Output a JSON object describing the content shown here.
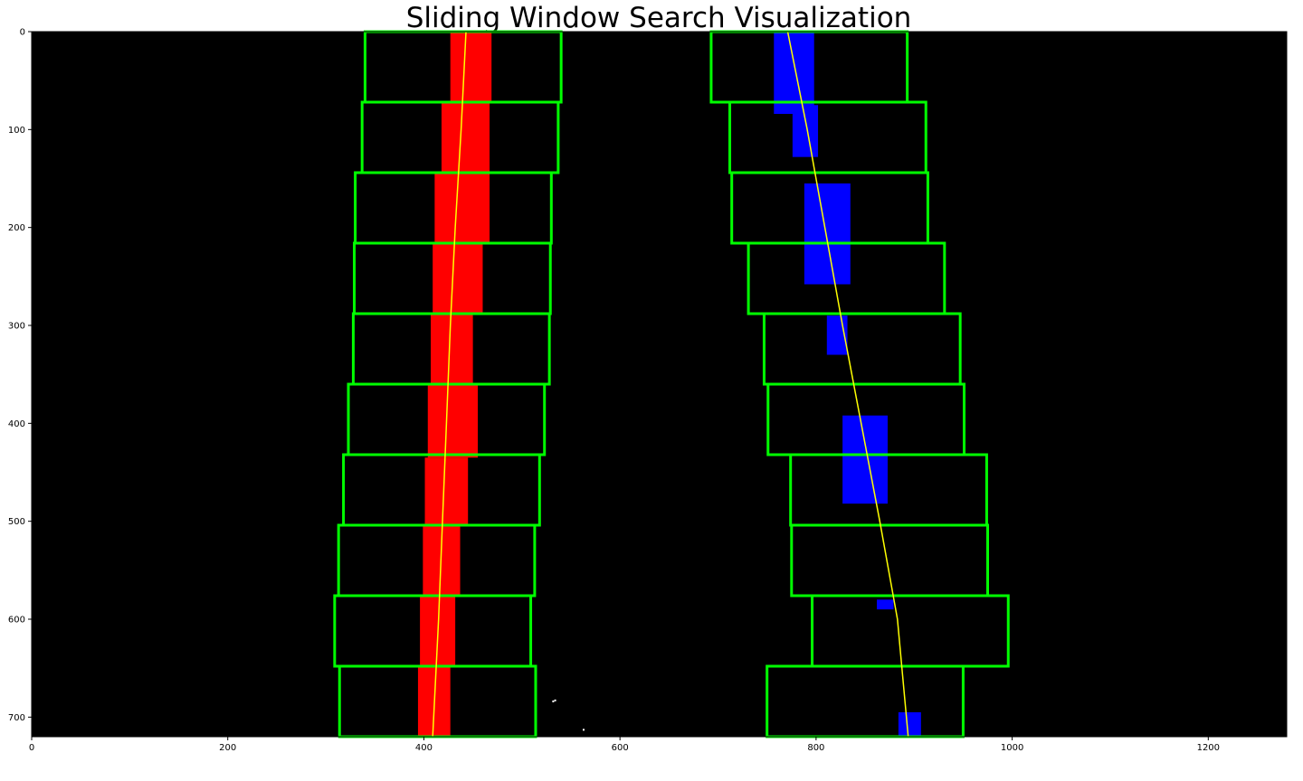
{
  "chart_data": {
    "type": "scatter",
    "title": "Sliding Window Search Visualization",
    "xlabel": "",
    "ylabel": "",
    "xlim": [
      0,
      1280
    ],
    "ylim": [
      720,
      0
    ],
    "xticks": [
      0,
      200,
      400,
      600,
      800,
      1000,
      1200
    ],
    "yticks": [
      0,
      100,
      200,
      300,
      400,
      500,
      600,
      700
    ],
    "grid": false,
    "background": "#000000",
    "colors": {
      "left_lane": "#ff0000",
      "right_lane": "#0000ff",
      "window": "#00ff00",
      "fit_line": "#ffff00",
      "noise": "#ffffff"
    },
    "windows": {
      "left": [
        {
          "x0": 340,
          "x1": 540,
          "y0": 0,
          "y1": 72
        },
        {
          "x0": 337,
          "x1": 537,
          "y0": 72,
          "y1": 144
        },
        {
          "x0": 330,
          "x1": 530,
          "y0": 144,
          "y1": 216
        },
        {
          "x0": 329,
          "x1": 529,
          "y0": 216,
          "y1": 288
        },
        {
          "x0": 328,
          "x1": 528,
          "y0": 288,
          "y1": 360
        },
        {
          "x0": 323,
          "x1": 523,
          "y0": 360,
          "y1": 432
        },
        {
          "x0": 318,
          "x1": 518,
          "y0": 432,
          "y1": 504
        },
        {
          "x0": 313,
          "x1": 513,
          "y0": 504,
          "y1": 576
        },
        {
          "x0": 309,
          "x1": 509,
          "y0": 576,
          "y1": 648
        },
        {
          "x0": 314,
          "x1": 514,
          "y0": 648,
          "y1": 720
        }
      ],
      "right": [
        {
          "x0": 693,
          "x1": 893,
          "y0": 0,
          "y1": 72
        },
        {
          "x0": 712,
          "x1": 912,
          "y0": 72,
          "y1": 144
        },
        {
          "x0": 714,
          "x1": 914,
          "y0": 144,
          "y1": 216
        },
        {
          "x0": 731,
          "x1": 931,
          "y0": 216,
          "y1": 288
        },
        {
          "x0": 747,
          "x1": 947,
          "y0": 288,
          "y1": 360
        },
        {
          "x0": 751,
          "x1": 951,
          "y0": 360,
          "y1": 432
        },
        {
          "x0": 774,
          "x1": 974,
          "y0": 432,
          "y1": 504
        },
        {
          "x0": 775,
          "x1": 975,
          "y0": 504,
          "y1": 576
        },
        {
          "x0": 796,
          "x1": 996,
          "y0": 576,
          "y1": 648
        },
        {
          "x0": 750,
          "x1": 950,
          "y0": 648,
          "y1": 720
        }
      ]
    },
    "fit_lines": {
      "left": [
        {
          "x": 443,
          "y": 0
        },
        {
          "x": 438,
          "y": 100
        },
        {
          "x": 432,
          "y": 200
        },
        {
          "x": 427,
          "y": 300
        },
        {
          "x": 423,
          "y": 400
        },
        {
          "x": 419,
          "y": 500
        },
        {
          "x": 415,
          "y": 600
        },
        {
          "x": 409,
          "y": 720
        }
      ],
      "right": [
        {
          "x": 771,
          "y": 0
        },
        {
          "x": 791,
          "y": 100
        },
        {
          "x": 809,
          "y": 200
        },
        {
          "x": 827,
          "y": 300
        },
        {
          "x": 846,
          "y": 400
        },
        {
          "x": 865,
          "y": 500
        },
        {
          "x": 883,
          "y": 600
        },
        {
          "x": 894,
          "y": 720
        }
      ]
    },
    "lane_pixels": {
      "left": [
        {
          "xl": 427,
          "xr": 469,
          "y0": 0,
          "y1": 72
        },
        {
          "xl": 418,
          "xr": 467,
          "y0": 72,
          "y1": 144
        },
        {
          "xl": 411,
          "xr": 467,
          "y0": 144,
          "y1": 216
        },
        {
          "xl": 409,
          "xr": 460,
          "y0": 216,
          "y1": 288
        },
        {
          "xl": 407,
          "xr": 450,
          "y0": 288,
          "y1": 360
        },
        {
          "xl": 404,
          "xr": 455,
          "y0": 360,
          "y1": 435
        },
        {
          "xl": 401,
          "xr": 445,
          "y0": 435,
          "y1": 504
        },
        {
          "xl": 399,
          "xr": 437,
          "y0": 504,
          "y1": 576
        },
        {
          "xl": 396,
          "xr": 432,
          "y0": 576,
          "y1": 648
        },
        {
          "xl": 394,
          "xr": 427,
          "y0": 648,
          "y1": 720
        }
      ],
      "right": [
        {
          "xl": 757,
          "xr": 798,
          "y0": 0,
          "y1": 84
        },
        {
          "xl": 776,
          "xr": 802,
          "y0": 75,
          "y1": 128
        },
        {
          "xl": 788,
          "xr": 835,
          "y0": 155,
          "y1": 258
        },
        {
          "xl": 811,
          "xr": 832,
          "y0": 290,
          "y1": 330
        },
        {
          "xl": 827,
          "xr": 873,
          "y0": 392,
          "y1": 482
        },
        {
          "xl": 862,
          "xr": 879,
          "y0": 580,
          "y1": 590
        },
        {
          "xl": 884,
          "xr": 907,
          "y0": 695,
          "y1": 720
        }
      ]
    },
    "noise_points": [
      {
        "x": 531,
        "y": 683
      },
      {
        "x": 533,
        "y": 682
      },
      {
        "x": 562,
        "y": 712
      }
    ]
  }
}
